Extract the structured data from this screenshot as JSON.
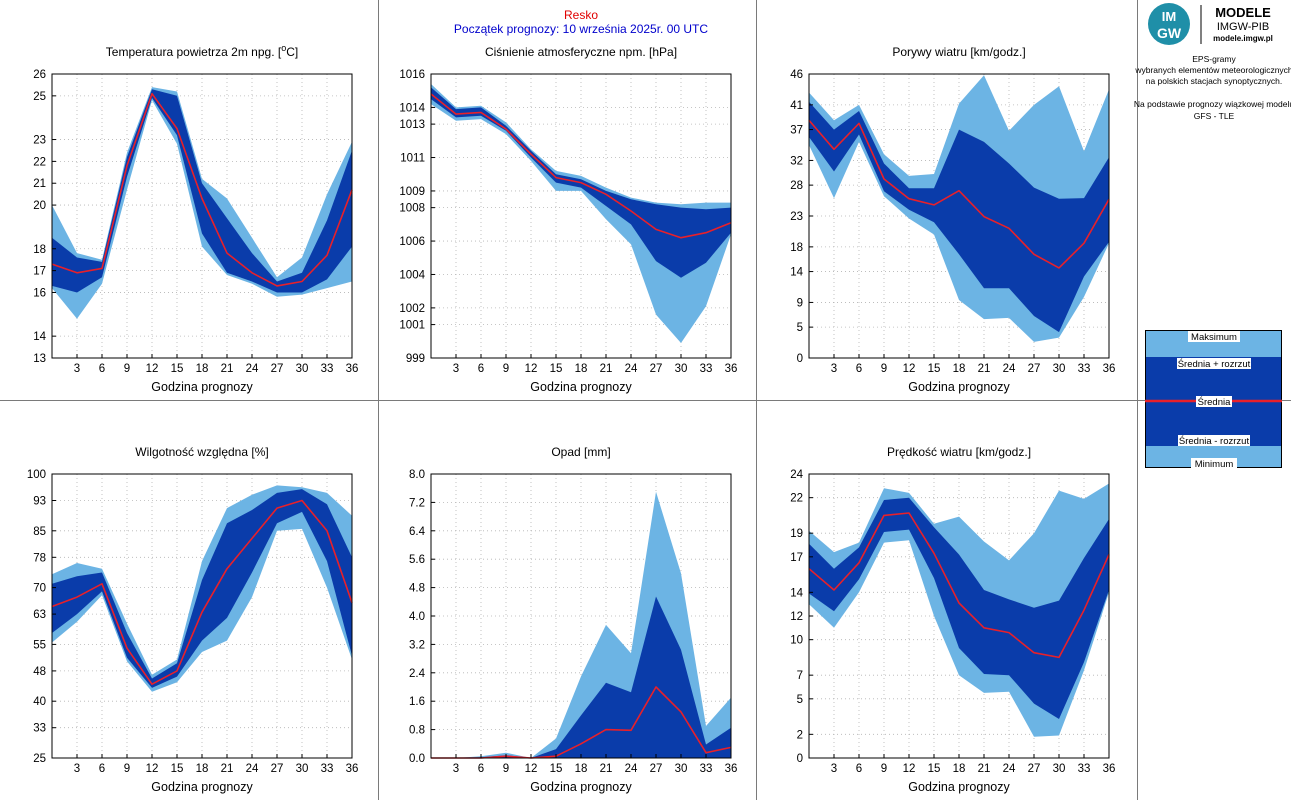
{
  "header": {
    "station": "Resko",
    "forecast_start": "Początek prognozy: 10 września 2025r. 00 UTC"
  },
  "logo": {
    "badge_top": "IM",
    "badge_bottom": "GW",
    "name": "MODELE",
    "org": "IMGW-PIB",
    "url": "modele.imgw.pl"
  },
  "description": {
    "line1": "EPS-gramy",
    "line2": "wybranych elementów meteorologicznych",
    "line3": "na polskich stacjach  synoptycznych.",
    "line4": "Na podstawie prognozy wiązkowej modelu",
    "line5": "GFS - TLE"
  },
  "legend": {
    "max": "Maksimum",
    "mean_plus": "Średnia + rozrzut",
    "mean": "Średnia",
    "mean_minus": "Średnia - rozrzut",
    "min": "Minimum"
  },
  "colors": {
    "extreme_band": "#6cb4e4",
    "spread_band": "#0a3caa",
    "mean_line": "#e8202a",
    "grid": "#b4b4b4"
  },
  "chart_data": [
    {
      "type": "area",
      "title_pre": "Temperatura powietrza 2m npg. [",
      "title_sup": "o",
      "title_post": "C]",
      "xlabel": "Godzina prognozy",
      "x": [
        0,
        3,
        6,
        9,
        12,
        15,
        18,
        21,
        24,
        27,
        30,
        33,
        36
      ],
      "x_ticks": [
        3,
        6,
        9,
        12,
        15,
        18,
        21,
        24,
        27,
        30,
        33,
        36
      ],
      "ylim": [
        13,
        26
      ],
      "y_ticks": [
        13,
        14,
        16,
        17,
        18,
        20,
        21,
        22,
        23,
        25,
        26
      ],
      "max": [
        20.0,
        17.8,
        17.5,
        22.4,
        25.4,
        25.2,
        21.2,
        20.3,
        18.5,
        16.7,
        17.6,
        20.5,
        22.9
      ],
      "mean_plus": [
        18.5,
        17.6,
        17.4,
        22.2,
        25.3,
        25.0,
        21.0,
        19.4,
        17.8,
        16.5,
        16.9,
        19.3,
        22.5
      ],
      "mean": [
        17.3,
        16.9,
        17.1,
        21.8,
        25.1,
        23.5,
        20.3,
        17.8,
        16.9,
        16.3,
        16.5,
        17.7,
        20.7
      ],
      "mean_minus": [
        16.3,
        16.0,
        16.7,
        21.3,
        24.9,
        23.2,
        18.7,
        16.9,
        16.5,
        16.0,
        16.0,
        16.6,
        18.1
      ],
      "min": [
        16.2,
        14.8,
        16.4,
        20.7,
        24.8,
        22.8,
        18.1,
        16.8,
        16.4,
        15.8,
        15.9,
        16.2,
        16.5
      ]
    },
    {
      "type": "area",
      "title": "Ciśnienie atmosferyczne npm. [hPa]",
      "xlabel": "Godzina prognozy",
      "x": [
        0,
        3,
        6,
        9,
        12,
        15,
        18,
        21,
        24,
        27,
        30,
        33,
        36
      ],
      "x_ticks": [
        3,
        6,
        9,
        12,
        15,
        18,
        21,
        24,
        27,
        30,
        33,
        36
      ],
      "ylim": [
        999,
        1016
      ],
      "y_ticks": [
        999,
        1001,
        1002,
        1004,
        1006,
        1008,
        1009,
        1011,
        1013,
        1014,
        1016
      ],
      "max": [
        1015.4,
        1014.0,
        1014.1,
        1013.1,
        1011.5,
        1010.2,
        1009.9,
        1009.2,
        1008.6,
        1008.3,
        1008.2,
        1008.3,
        1008.3
      ],
      "mean_plus": [
        1015.2,
        1013.9,
        1014.0,
        1012.9,
        1011.4,
        1010.0,
        1009.7,
        1009.0,
        1008.5,
        1008.2,
        1008.0,
        1007.9,
        1008.0
      ],
      "mean": [
        1014.8,
        1013.6,
        1013.7,
        1012.7,
        1011.2,
        1009.8,
        1009.5,
        1008.8,
        1007.8,
        1006.7,
        1006.2,
        1006.5,
        1007.1
      ],
      "mean_minus": [
        1014.5,
        1013.4,
        1013.5,
        1012.6,
        1011.0,
        1009.5,
        1009.2,
        1008.1,
        1007.0,
        1004.8,
        1003.8,
        1004.7,
        1006.5
      ],
      "min": [
        1014.2,
        1013.2,
        1013.3,
        1012.4,
        1010.8,
        1009.0,
        1009.0,
        1007.3,
        1005.8,
        1001.6,
        999.9,
        1002.1,
        1006.4
      ]
    },
    {
      "type": "area",
      "title": "Porywy wiatru [km/godz.]",
      "xlabel": "Godzina prognozy",
      "x": [
        0,
        3,
        6,
        9,
        12,
        15,
        18,
        21,
        24,
        27,
        30,
        33,
        36
      ],
      "x_ticks": [
        3,
        6,
        9,
        12,
        15,
        18,
        21,
        24,
        27,
        30,
        33,
        36
      ],
      "ylim": [
        0,
        46
      ],
      "y_ticks": [
        0,
        5,
        9,
        14,
        18,
        23,
        28,
        32,
        37,
        41,
        46
      ],
      "max": [
        43.0,
        38.5,
        41.0,
        33.0,
        29.5,
        29.8,
        41.2,
        45.8,
        36.8,
        41.0,
        44.0,
        33.5,
        43.5
      ],
      "mean_plus": [
        41.5,
        37.0,
        40.0,
        31.5,
        27.5,
        27.5,
        37.0,
        35.0,
        31.5,
        27.6,
        25.8,
        25.9,
        32.5
      ],
      "mean": [
        38.5,
        33.8,
        38.0,
        29.0,
        25.8,
        24.8,
        27.1,
        22.9,
        21.0,
        16.8,
        14.6,
        18.6,
        25.7
      ],
      "mean_minus": [
        35.8,
        30.2,
        36.2,
        27.0,
        24.0,
        22.0,
        16.8,
        11.3,
        11.3,
        6.8,
        4.2,
        13.2,
        18.8
      ],
      "min": [
        34.5,
        25.9,
        35.0,
        26.2,
        22.6,
        20.0,
        9.4,
        6.3,
        6.5,
        2.6,
        3.3,
        9.9,
        18.6
      ]
    },
    {
      "type": "area",
      "title": "Wilgotność względna [%]",
      "xlabel": "Godzina prognozy",
      "x": [
        0,
        3,
        6,
        9,
        12,
        15,
        18,
        21,
        24,
        27,
        30,
        33,
        36
      ],
      "x_ticks": [
        3,
        6,
        9,
        12,
        15,
        18,
        21,
        24,
        27,
        30,
        33,
        36
      ],
      "ylim": [
        25,
        100
      ],
      "y_ticks": [
        25,
        33,
        40,
        48,
        55,
        63,
        70,
        78,
        85,
        93,
        100
      ],
      "max": [
        73.5,
        76.5,
        75.0,
        60.5,
        47.0,
        51.0,
        77.0,
        91.0,
        94.5,
        97.0,
        96.5,
        95.0,
        89.0
      ],
      "mean_plus": [
        71.0,
        73.0,
        74.0,
        58.0,
        46.0,
        50.0,
        72.0,
        87.0,
        90.5,
        95.0,
        96.0,
        92.0,
        78.0
      ],
      "mean": [
        65.0,
        67.5,
        71.0,
        54.0,
        44.5,
        48.0,
        63.5,
        75.0,
        83.0,
        91.0,
        93.0,
        85.0,
        66.0
      ],
      "mean_minus": [
        58.0,
        63.0,
        69.0,
        51.5,
        43.5,
        46.5,
        56.0,
        62.0,
        74.0,
        87.0,
        90.0,
        77.0,
        52.0
      ],
      "min": [
        55.5,
        61.0,
        68.0,
        50.5,
        42.5,
        45.0,
        53.0,
        56.0,
        67.5,
        85.0,
        85.5,
        70.0,
        51.0
      ]
    },
    {
      "type": "area",
      "title": "Opad [mm]",
      "xlabel": "Godzina prognozy",
      "x": [
        0,
        3,
        6,
        9,
        12,
        15,
        18,
        21,
        24,
        27,
        30,
        33,
        36
      ],
      "x_ticks": [
        3,
        6,
        9,
        12,
        15,
        18,
        21,
        24,
        27,
        30,
        33,
        36
      ],
      "ylim": [
        0,
        8
      ],
      "y_ticks": [
        0.0,
        0.8,
        1.6,
        2.4,
        3.2,
        4.0,
        4.8,
        5.6,
        6.4,
        7.2,
        8.0
      ],
      "max": [
        0,
        0,
        0.05,
        0.15,
        0,
        0.55,
        2.3,
        3.75,
        2.95,
        7.5,
        5.2,
        0.9,
        1.7
      ],
      "mean_plus": [
        0,
        0,
        0.02,
        0.08,
        0,
        0.25,
        1.2,
        2.12,
        1.85,
        4.55,
        3.05,
        0.38,
        0.85
      ],
      "mean": [
        0,
        0,
        0,
        0.05,
        0,
        0.05,
        0.4,
        0.8,
        0.78,
        2.0,
        1.3,
        0.15,
        0.3
      ],
      "mean_minus": [
        0,
        0,
        0,
        0,
        0,
        0,
        0,
        0,
        0,
        0,
        0,
        0,
        0
      ],
      "min": [
        0,
        0,
        0,
        0,
        0,
        0,
        0,
        0,
        0,
        0,
        0,
        0,
        0
      ]
    },
    {
      "type": "area",
      "title": "Prędkość wiatru [km/godz.]",
      "xlabel": "Godzina prognozy",
      "x": [
        0,
        3,
        6,
        9,
        12,
        15,
        18,
        21,
        24,
        27,
        30,
        33,
        36
      ],
      "x_ticks": [
        3,
        6,
        9,
        12,
        15,
        18,
        21,
        24,
        27,
        30,
        33,
        36
      ],
      "ylim": [
        0,
        24
      ],
      "y_ticks": [
        0,
        2,
        5,
        7,
        10,
        12,
        14,
        17,
        19,
        22,
        24
      ],
      "max": [
        19.2,
        17.4,
        18.2,
        22.8,
        22.4,
        19.8,
        20.4,
        18.3,
        16.7,
        19.0,
        22.6,
        21.9,
        23.2
      ],
      "mean_plus": [
        18.1,
        16.0,
        17.8,
        21.8,
        22.0,
        19.5,
        17.2,
        14.2,
        13.4,
        12.7,
        13.3,
        16.9,
        20.2
      ],
      "mean": [
        16.0,
        14.2,
        16.5,
        20.5,
        20.7,
        17.3,
        13.1,
        11.0,
        10.6,
        8.9,
        8.5,
        12.5,
        17.2
      ],
      "mean_minus": [
        13.9,
        12.4,
        15.1,
        19.1,
        19.3,
        15.2,
        9.3,
        7.1,
        7.0,
        4.6,
        3.3,
        8.1,
        14.2
      ],
      "min": [
        13.0,
        11.0,
        14.0,
        18.2,
        18.4,
        12.0,
        7.0,
        5.5,
        5.6,
        1.8,
        1.9,
        7.4,
        14.0
      ]
    }
  ]
}
